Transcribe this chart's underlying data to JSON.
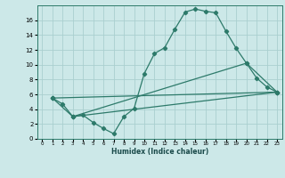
{
  "xlabel": "Humidex (Indice chaleur)",
  "bg_color": "#cce8e8",
  "grid_color": "#aacfcf",
  "line_color": "#2d7a6a",
  "xlim": [
    -0.5,
    23.5
  ],
  "ylim": [
    0,
    18
  ],
  "xticks": [
    0,
    1,
    2,
    3,
    4,
    5,
    6,
    7,
    8,
    9,
    10,
    11,
    12,
    13,
    14,
    15,
    16,
    17,
    18,
    19,
    20,
    21,
    22,
    23
  ],
  "yticks": [
    0,
    2,
    4,
    6,
    8,
    10,
    12,
    14,
    16
  ],
  "line1_x": [
    1,
    2,
    3,
    4,
    5,
    6,
    7,
    8,
    9,
    10,
    11,
    12,
    13,
    14,
    15,
    16,
    17,
    18,
    19,
    20,
    21,
    22,
    23
  ],
  "line1_y": [
    5.5,
    4.7,
    3.0,
    3.2,
    2.2,
    1.4,
    0.7,
    3.0,
    4.1,
    8.8,
    11.5,
    12.3,
    14.8,
    17.1,
    17.5,
    17.2,
    17.0,
    14.5,
    12.2,
    10.2,
    8.2,
    7.0,
    6.3
  ],
  "line2_x": [
    1,
    3,
    23
  ],
  "line2_y": [
    5.5,
    3.0,
    6.3
  ],
  "line3_x": [
    1,
    23
  ],
  "line3_y": [
    5.5,
    6.3
  ],
  "line4_x": [
    3,
    20,
    23
  ],
  "line4_y": [
    3.0,
    10.2,
    6.3
  ]
}
